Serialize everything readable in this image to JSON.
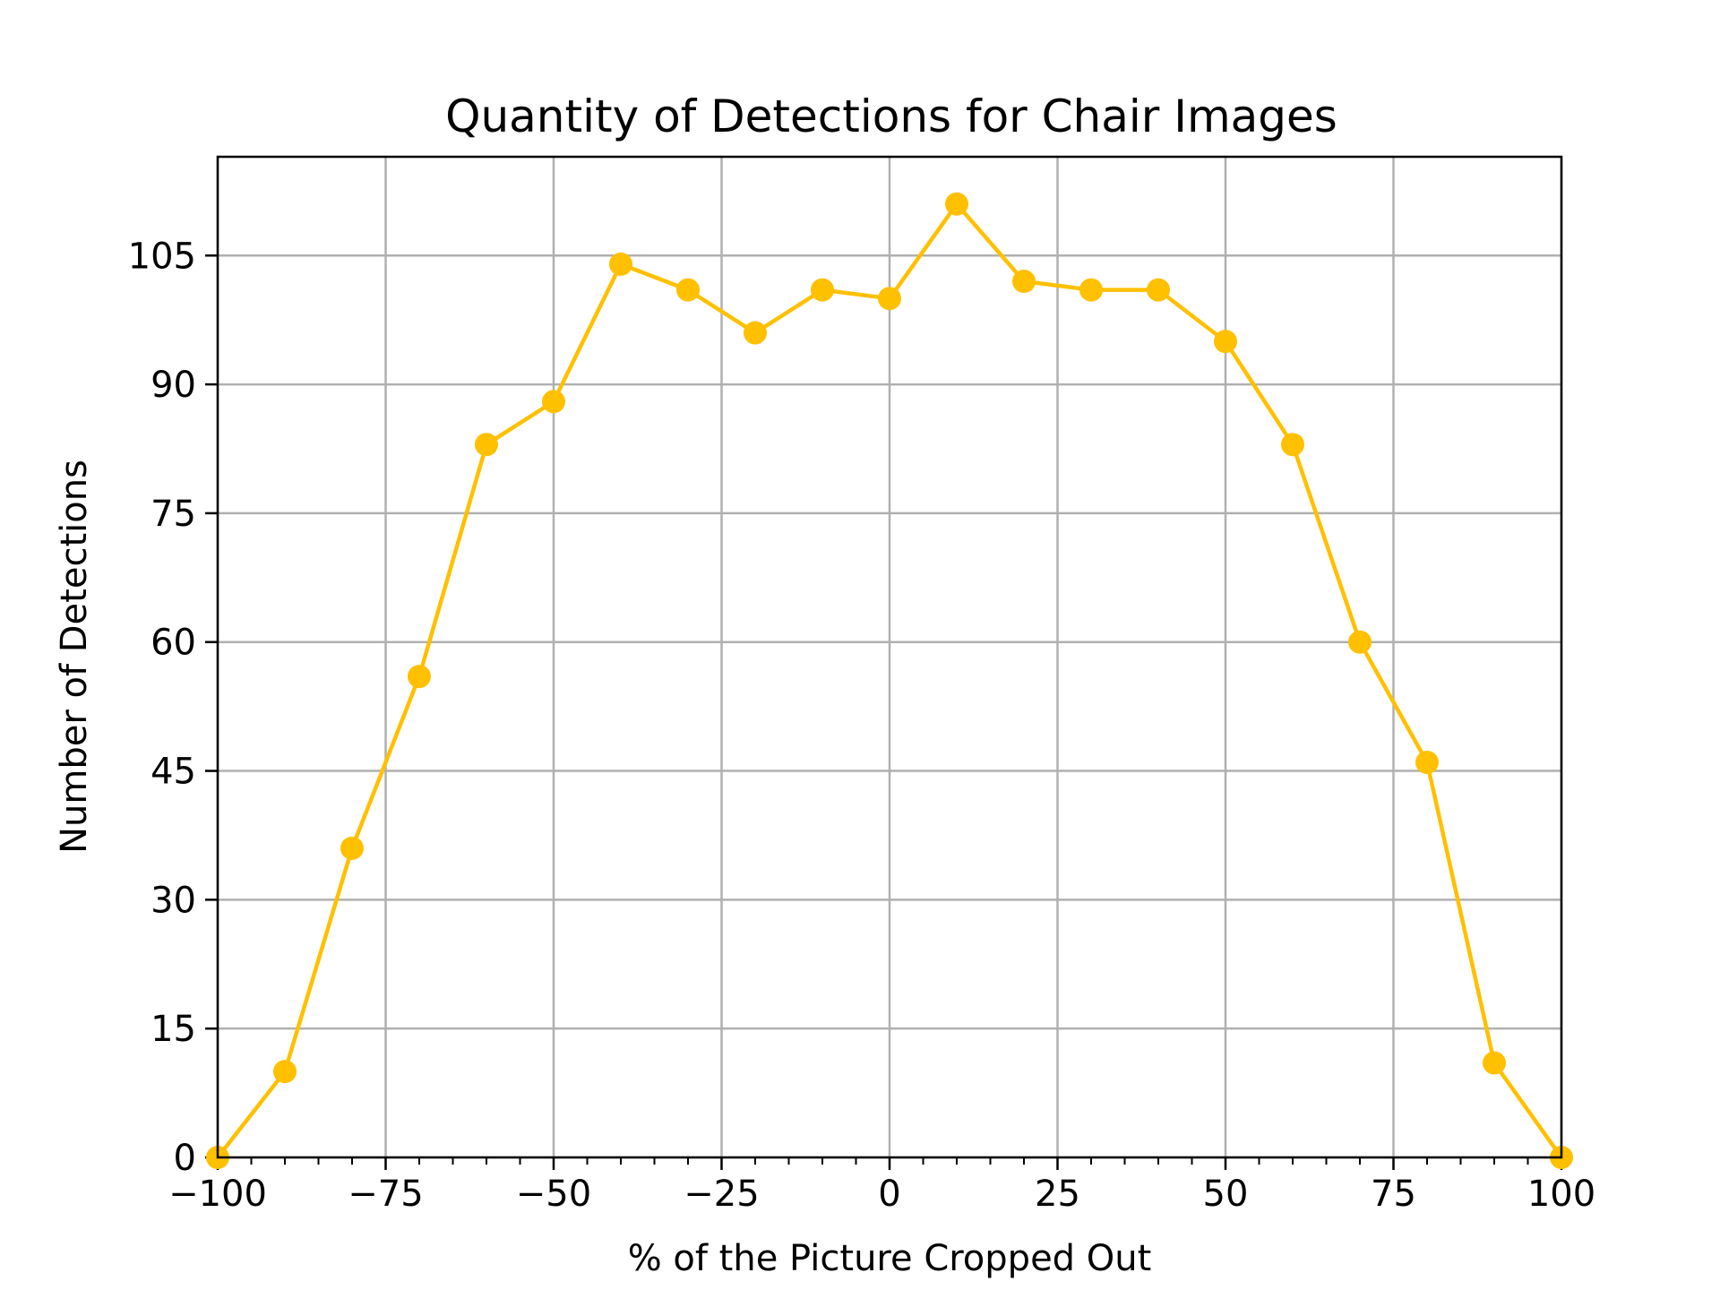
{
  "chart_data": {
    "type": "line",
    "title": "Quantity of Detections for Chair Images",
    "xlabel": "% of the Picture Cropped Out",
    "ylabel": "Number of Detections",
    "xlim": [
      -100,
      100
    ],
    "ylim": [
      0,
      116.5
    ],
    "xticks": [
      -100,
      -75,
      -50,
      -25,
      0,
      25,
      50,
      75,
      100
    ],
    "xtick_labels": [
      "−100",
      "−75",
      "−50",
      "−25",
      "0",
      "25",
      "50",
      "75",
      "100"
    ],
    "yticks": [
      0,
      15,
      30,
      45,
      60,
      75,
      90,
      105
    ],
    "ytick_labels": [
      "0",
      "15",
      "30",
      "45",
      "60",
      "75",
      "90",
      "105"
    ],
    "grid": true,
    "series": [
      {
        "color": "#ffc000",
        "marker": "circle",
        "x": [
          -100,
          -90,
          -80,
          -70,
          -60,
          -50,
          -40,
          -30,
          -20,
          -10,
          0,
          10,
          20,
          30,
          40,
          50,
          60,
          70,
          80,
          90,
          100
        ],
        "y": [
          0,
          10,
          36,
          56,
          83,
          88,
          104,
          101,
          96,
          101,
          100,
          111,
          102,
          101,
          101,
          95,
          83,
          60,
          46,
          11,
          0
        ]
      }
    ]
  }
}
